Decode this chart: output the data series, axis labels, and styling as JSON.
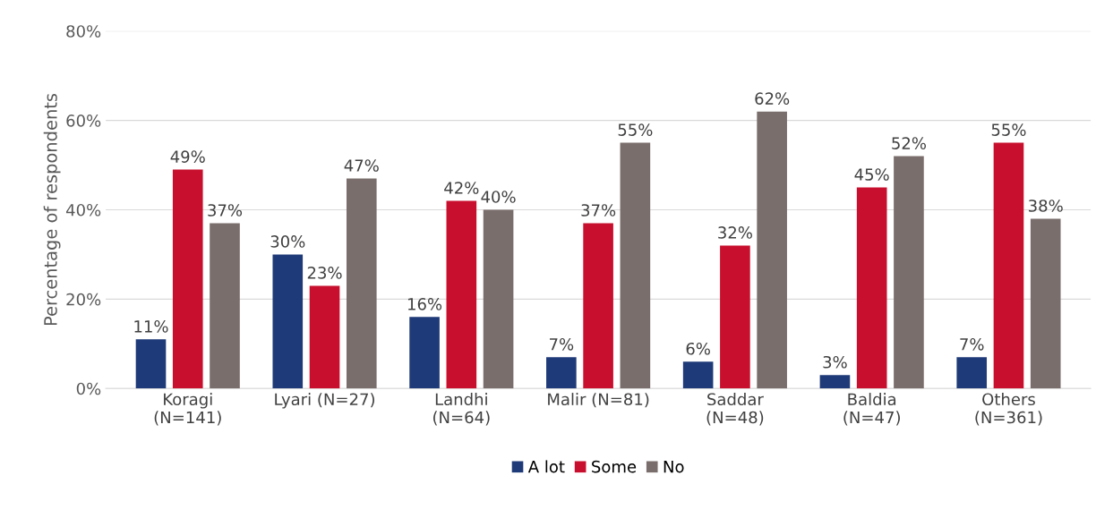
{
  "chart_data": {
    "type": "bar",
    "ylabel": "Percentage of respondents",
    "categories": [
      "Koragi\n(N=141)",
      "Lyari (N=27)",
      "Landhi\n(N=64)",
      "Malir (N=81)",
      "Saddar\n(N=48)",
      "Baldia\n(N=47)",
      "Others\n(N=361)"
    ],
    "series": [
      {
        "name": "A lot",
        "color": "#1f3a78",
        "values": [
          11,
          30,
          16,
          7,
          6,
          3,
          7
        ],
        "value_labels": [
          "11%",
          "30%",
          "16%",
          "7%",
          "6%",
          "3%",
          "7%"
        ]
      },
      {
        "name": "Some",
        "color": "#c8102e",
        "values": [
          49,
          23,
          42,
          37,
          32,
          45,
          55
        ],
        "value_labels": [
          "49%",
          "23%",
          "42%",
          "37%",
          "32%",
          "45%",
          "55%"
        ]
      },
      {
        "name": "No",
        "color": "#7a6e6c",
        "values": [
          37,
          47,
          40,
          55,
          62,
          52,
          38
        ],
        "value_labels": [
          "37%",
          "47%",
          "40%",
          "55%",
          "62%",
          "52%",
          "38%"
        ]
      }
    ],
    "ylim": [
      0,
      80
    ],
    "yticks": [
      {
        "value": 0,
        "label": "0%"
      },
      {
        "value": 20,
        "label": "20%"
      },
      {
        "value": 40,
        "label": "40%"
      },
      {
        "value": 60,
        "label": "60%"
      },
      {
        "value": 80,
        "label": "80%"
      }
    ],
    "grid": "y",
    "legend": "bottom"
  }
}
